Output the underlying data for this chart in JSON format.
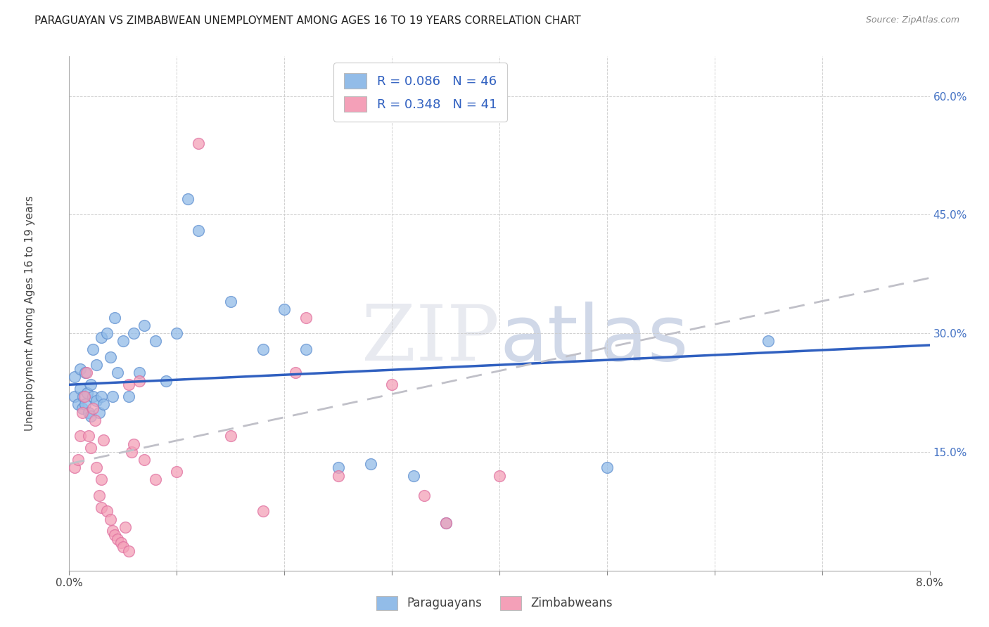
{
  "title": "PARAGUAYAN VS ZIMBABWEAN UNEMPLOYMENT AMONG AGES 16 TO 19 YEARS CORRELATION CHART",
  "source": "Source: ZipAtlas.com",
  "ylabel": "Unemployment Among Ages 16 to 19 years",
  "xlim": [
    0.0,
    8.0
  ],
  "ylim": [
    0.0,
    65.0
  ],
  "paraguayan_color": "#92bce8",
  "zimbabwean_color": "#f4a0b8",
  "trend_paraguayan_color": "#3060c0",
  "trend_zimbabwean_color": "#c0c0c8",
  "watermark_color": "#e8eaf0",
  "legend_r_paraguayan": "0.086",
  "legend_n_paraguayan": "46",
  "legend_r_zimbabwean": "0.348",
  "legend_n_zimbabwean": "41",
  "par_trend_x0": 0.0,
  "par_trend_y0": 23.5,
  "par_trend_x1": 8.0,
  "par_trend_y1": 28.5,
  "zim_trend_x0": 0.0,
  "zim_trend_y0": 13.5,
  "zim_trend_x1": 8.0,
  "zim_trend_y1": 37.0,
  "paraguayan_x": [
    0.05,
    0.05,
    0.08,
    0.1,
    0.1,
    0.12,
    0.13,
    0.15,
    0.15,
    0.17,
    0.18,
    0.2,
    0.2,
    0.22,
    0.22,
    0.25,
    0.25,
    0.28,
    0.3,
    0.3,
    0.32,
    0.35,
    0.38,
    0.4,
    0.42,
    0.45,
    0.5,
    0.55,
    0.6,
    0.65,
    0.7,
    0.8,
    0.9,
    1.0,
    1.1,
    1.2,
    1.5,
    1.8,
    2.0,
    2.2,
    2.5,
    2.8,
    3.2,
    3.5,
    5.0,
    6.5
  ],
  "paraguayan_y": [
    22.0,
    24.5,
    21.0,
    23.0,
    25.5,
    20.5,
    22.0,
    21.0,
    25.0,
    22.5,
    20.0,
    19.5,
    23.5,
    22.0,
    28.0,
    21.5,
    26.0,
    20.0,
    22.0,
    29.5,
    21.0,
    30.0,
    27.0,
    22.0,
    32.0,
    25.0,
    29.0,
    22.0,
    30.0,
    25.0,
    31.0,
    29.0,
    24.0,
    30.0,
    47.0,
    43.0,
    34.0,
    28.0,
    33.0,
    28.0,
    13.0,
    13.5,
    12.0,
    6.0,
    13.0,
    29.0
  ],
  "zimbabwean_x": [
    0.05,
    0.08,
    0.1,
    0.12,
    0.14,
    0.16,
    0.18,
    0.2,
    0.22,
    0.24,
    0.25,
    0.28,
    0.3,
    0.32,
    0.35,
    0.38,
    0.4,
    0.42,
    0.45,
    0.48,
    0.5,
    0.52,
    0.55,
    0.58,
    0.6,
    0.65,
    0.7,
    0.8,
    1.0,
    1.2,
    1.5,
    1.8,
    2.1,
    2.2,
    2.5,
    3.0,
    3.3,
    3.5,
    4.0,
    0.3,
    0.55
  ],
  "zimbabwean_y": [
    13.0,
    14.0,
    17.0,
    20.0,
    22.0,
    25.0,
    17.0,
    15.5,
    20.5,
    19.0,
    13.0,
    9.5,
    8.0,
    16.5,
    7.5,
    6.5,
    5.0,
    4.5,
    4.0,
    3.5,
    3.0,
    5.5,
    2.5,
    15.0,
    16.0,
    24.0,
    14.0,
    11.5,
    12.5,
    54.0,
    17.0,
    7.5,
    25.0,
    32.0,
    12.0,
    23.5,
    9.5,
    6.0,
    12.0,
    11.5,
    23.5
  ]
}
